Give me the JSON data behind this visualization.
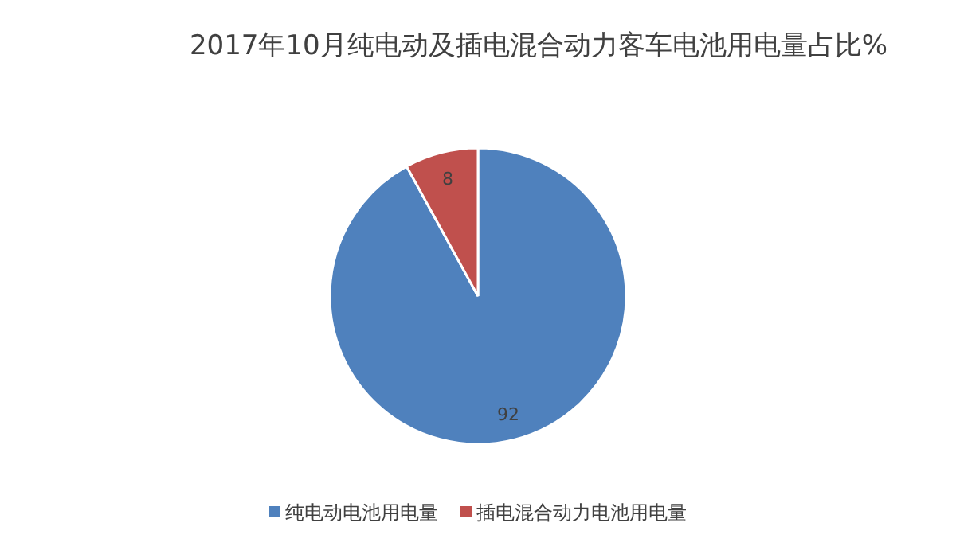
{
  "chart_data": {
    "type": "pie",
    "title": "2017年10月纯电动及插电混合动力客车电池用电量占比%",
    "categories": [
      "纯电动电池用电量",
      "插电混合动力电池用电量"
    ],
    "values": [
      92,
      8
    ],
    "colors": [
      "#4f81bd",
      "#c0504d"
    ],
    "data_labels": true,
    "legend": "bottom"
  }
}
